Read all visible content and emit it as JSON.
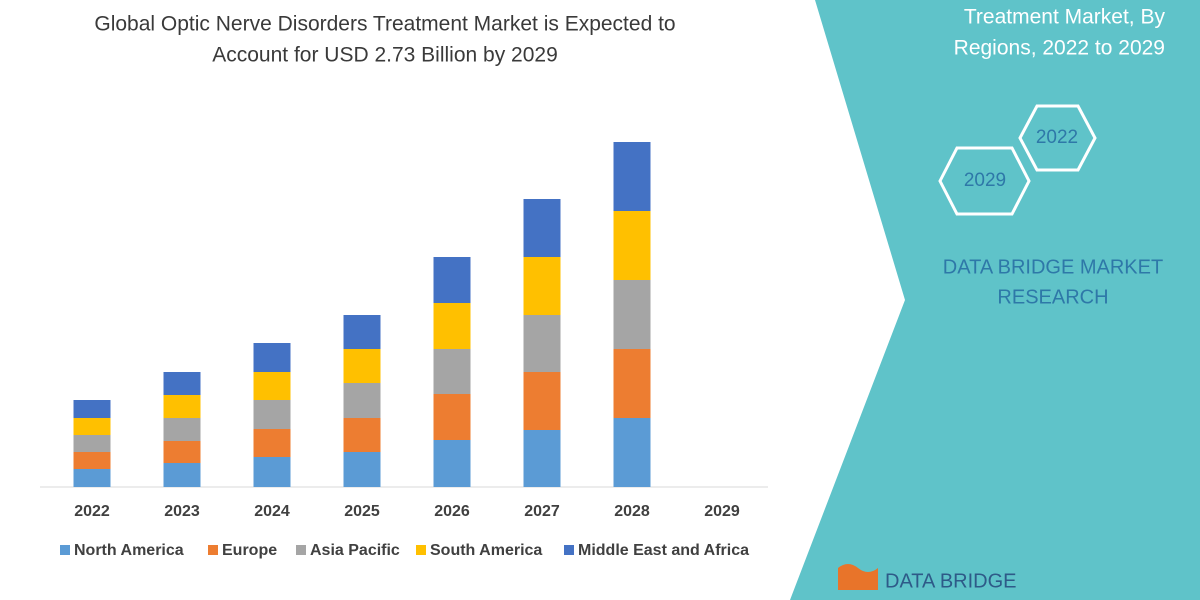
{
  "chart_data": {
    "type": "stacked-bar",
    "title": [
      "Global Optic Nerve Disorders Treatment Market is Expected to",
      "Account for USD 2.73 Billion by 2029"
    ],
    "categories": [
      "2022",
      "2023",
      "2024",
      "2025",
      "2026",
      "2027",
      "2028",
      "2029"
    ],
    "series": [
      {
        "name": "North America",
        "color": "#5b9bd5",
        "values": [
          18,
          24,
          30,
          35,
          47,
          57,
          69,
          null
        ]
      },
      {
        "name": "Europe",
        "color": "#ed7d31",
        "values": [
          17,
          22,
          28,
          34,
          46,
          58,
          69,
          null
        ]
      },
      {
        "name": "Asia Pacific",
        "color": "#a5a5a5",
        "values": [
          17,
          23,
          29,
          35,
          45,
          57,
          69,
          null
        ]
      },
      {
        "name": "South America",
        "color": "#ffc000",
        "values": [
          17,
          23,
          28,
          34,
          46,
          58,
          69,
          null
        ]
      },
      {
        "name": "Middle East and Africa",
        "color": "#4472c4",
        "values": [
          18,
          23,
          29,
          34,
          46,
          58,
          69,
          null
        ]
      }
    ],
    "ylim": [
      0,
      350
    ]
  },
  "side_panel": {
    "heading": [
      "Treatment Market, By",
      "Regions, 2022 to 2029"
    ],
    "badges": [
      "2022",
      "2029"
    ],
    "brand": [
      "DATA BRIDGE MARKET",
      "RESEARCH"
    ],
    "logo": "DATA BRIDGE"
  }
}
